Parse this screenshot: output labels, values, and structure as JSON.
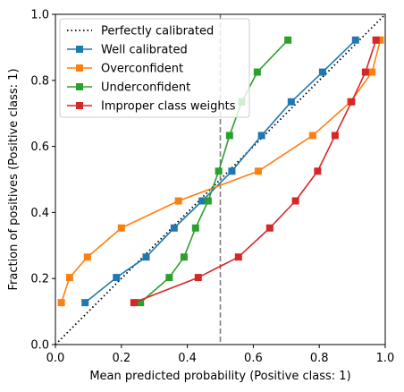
{
  "chart_data": {
    "type": "line",
    "xlabel": "Mean predicted probability (Positive class: 1)",
    "ylabel": "Fraction of positives (Positive class: 1)",
    "xlim": [
      0,
      1
    ],
    "ylim": [
      0,
      1
    ],
    "xticks": [
      "0.0",
      "0.2",
      "0.4",
      "0.6",
      "0.8",
      "1.0"
    ],
    "yticks": [
      "0.0",
      "0.2",
      "0.4",
      "0.6",
      "0.8",
      "1.0"
    ],
    "grid": false,
    "legend_position": "top-left",
    "reference_line": {
      "name": "Perfectly calibrated",
      "style": "dotted",
      "color": "#000000",
      "x": [
        0,
        1
      ],
      "y": [
        0,
        1
      ]
    },
    "vertical_line": {
      "x": 0.5,
      "style": "dashed",
      "color": "#808080"
    },
    "series": [
      {
        "name": "Well calibrated",
        "color": "#1f77b4",
        "marker": "square",
        "x": [
          0.09,
          0.185,
          0.275,
          0.36,
          0.445,
          0.535,
          0.625,
          0.715,
          0.81,
          0.91
        ],
        "y": [
          0.127,
          0.203,
          0.265,
          0.353,
          0.435,
          0.525,
          0.633,
          0.735,
          0.825,
          0.922
        ]
      },
      {
        "name": "Overconfident",
        "color": "#ff7f0e",
        "marker": "square",
        "x": [
          0.018,
          0.043,
          0.097,
          0.2,
          0.373,
          0.615,
          0.78,
          0.895,
          0.96,
          0.985
        ],
        "y": [
          0.127,
          0.203,
          0.265,
          0.353,
          0.435,
          0.525,
          0.633,
          0.735,
          0.825,
          0.922
        ]
      },
      {
        "name": "Underconfident",
        "color": "#2ca02c",
        "marker": "square",
        "x": [
          0.258,
          0.345,
          0.39,
          0.425,
          0.463,
          0.495,
          0.528,
          0.565,
          0.612,
          0.705
        ],
        "y": [
          0.127,
          0.203,
          0.265,
          0.353,
          0.435,
          0.525,
          0.633,
          0.735,
          0.825,
          0.922
        ]
      },
      {
        "name": "Improper class weights",
        "color": "#d62728",
        "marker": "square",
        "x": [
          0.238,
          0.433,
          0.555,
          0.65,
          0.728,
          0.795,
          0.848,
          0.898,
          0.94,
          0.972
        ],
        "y": [
          0.127,
          0.203,
          0.265,
          0.353,
          0.435,
          0.525,
          0.633,
          0.735,
          0.825,
          0.922
        ]
      }
    ]
  }
}
